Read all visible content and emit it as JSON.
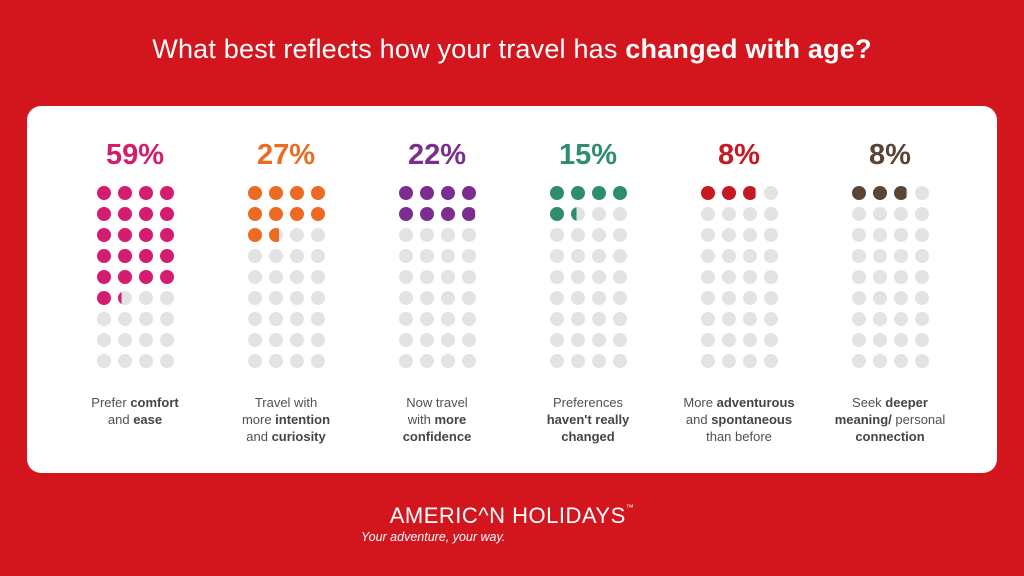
{
  "title": {
    "prefix": "What best reflects how your travel has ",
    "emphasis": "changed with age?"
  },
  "chart_data": {
    "type": "waffle",
    "title": "What best reflects how your travel has changed with age?",
    "unit": "%",
    "dots_per_column": 36,
    "empty_color": "#e3e3e3",
    "series": [
      {
        "value": 59,
        "display": "59%",
        "color": "#d51d6f",
        "label": [
          {
            "t": "Prefer "
          },
          {
            "t": "comfort",
            "b": true
          },
          {
            "br": true
          },
          {
            "t": "and "
          },
          {
            "t": "ease",
            "b": true
          }
        ]
      },
      {
        "value": 27,
        "display": "27%",
        "color": "#ec6a22",
        "label": [
          {
            "t": "Travel with"
          },
          {
            "br": true
          },
          {
            "t": "more "
          },
          {
            "t": "intention",
            "b": true
          },
          {
            "br": true
          },
          {
            "t": "and "
          },
          {
            "t": "curiosity",
            "b": true
          }
        ]
      },
      {
        "value": 22,
        "display": "22%",
        "color": "#7b2e8f",
        "label": [
          {
            "t": "Now travel"
          },
          {
            "br": true
          },
          {
            "t": "with "
          },
          {
            "t": "more",
            "b": true
          },
          {
            "br": true
          },
          {
            "t": "confidence",
            "b": true
          }
        ]
      },
      {
        "value": 15,
        "display": "15%",
        "color": "#2e8c6f",
        "label": [
          {
            "t": "Preferences"
          },
          {
            "br": true
          },
          {
            "t": "haven't really",
            "b": true
          },
          {
            "br": true
          },
          {
            "t": "changed",
            "b": true
          }
        ]
      },
      {
        "value": 8,
        "display": "8%",
        "color": "#c51a22",
        "label": [
          {
            "t": "More "
          },
          {
            "t": "adventurous",
            "b": true
          },
          {
            "br": true
          },
          {
            "t": "and "
          },
          {
            "t": "spontaneous",
            "b": true
          },
          {
            "br": true
          },
          {
            "t": "than before"
          }
        ]
      },
      {
        "value": 8,
        "display": "8%",
        "color": "#5a4535",
        "label": [
          {
            "t": "Seek "
          },
          {
            "t": "deeper",
            "b": true
          },
          {
            "br": true
          },
          {
            "t": "meaning/",
            "b": true
          },
          {
            "t": " personal"
          },
          {
            "br": true
          },
          {
            "t": "connection",
            "b": true
          }
        ]
      }
    ]
  },
  "brand": {
    "name": "AMERIC^N HOLIDAYS",
    "trademark": "™",
    "tagline": "Your adventure, your way."
  }
}
